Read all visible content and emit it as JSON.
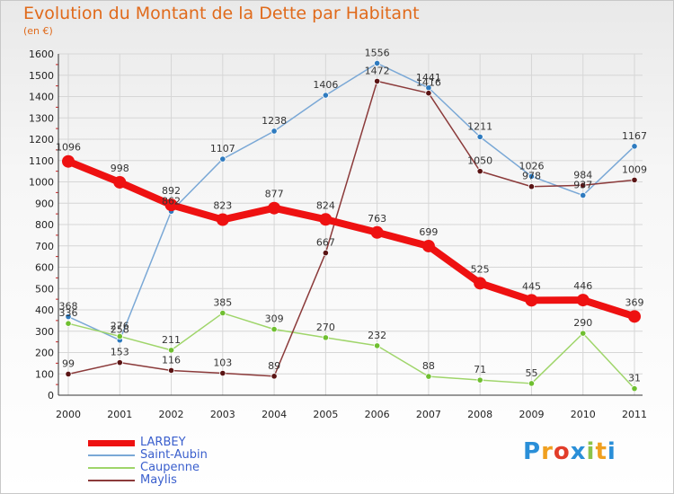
{
  "title": "Evolution du Montant de la Dette par Habitant",
  "unit": "(en €)",
  "chart_data": {
    "type": "line",
    "x": [
      "2000",
      "2001",
      "2002",
      "2003",
      "2004",
      "2005",
      "2006",
      "2007",
      "2008",
      "2009",
      "2010",
      "2011"
    ],
    "ylim": [
      0,
      1600
    ],
    "yticks": [
      0,
      100,
      200,
      300,
      400,
      500,
      600,
      700,
      800,
      900,
      1000,
      1100,
      1200,
      1300,
      1400,
      1500,
      1600
    ],
    "grid": true,
    "legend_position": "bottom-left",
    "series": [
      {
        "name": "LARBEY",
        "color": "#ee1111",
        "values": [
          1096,
          998,
          892,
          823,
          877,
          824,
          763,
          699,
          525,
          445,
          446,
          369
        ]
      },
      {
        "name": "Saint-Aubin",
        "color": "#7aa8d6",
        "marker": "#2f7bbf",
        "values": [
          368,
          258,
          862,
          1107,
          1238,
          1406,
          1556,
          1441,
          1211,
          1026,
          937,
          1167
        ]
      },
      {
        "name": "Caupenne",
        "color": "#9fd56a",
        "marker": "#6fbf30",
        "values": [
          336,
          276,
          211,
          385,
          309,
          270,
          232,
          88,
          71,
          55,
          290,
          31
        ]
      },
      {
        "name": "Maylis",
        "color": "#8b3a3a",
        "marker": "#5a1414",
        "values": [
          99,
          153,
          116,
          103,
          89,
          667,
          1472,
          1416,
          1050,
          978,
          984,
          1009
        ]
      }
    ]
  },
  "logo": {
    "letters": [
      "P",
      "r",
      "o",
      "x",
      "i",
      "t",
      "i"
    ],
    "colors": [
      "#2a8fd8",
      "#f0a020",
      "#e23d2a",
      "#2a8fd8",
      "#8bc34a",
      "#f0a020",
      "#2a8fd8"
    ]
  }
}
